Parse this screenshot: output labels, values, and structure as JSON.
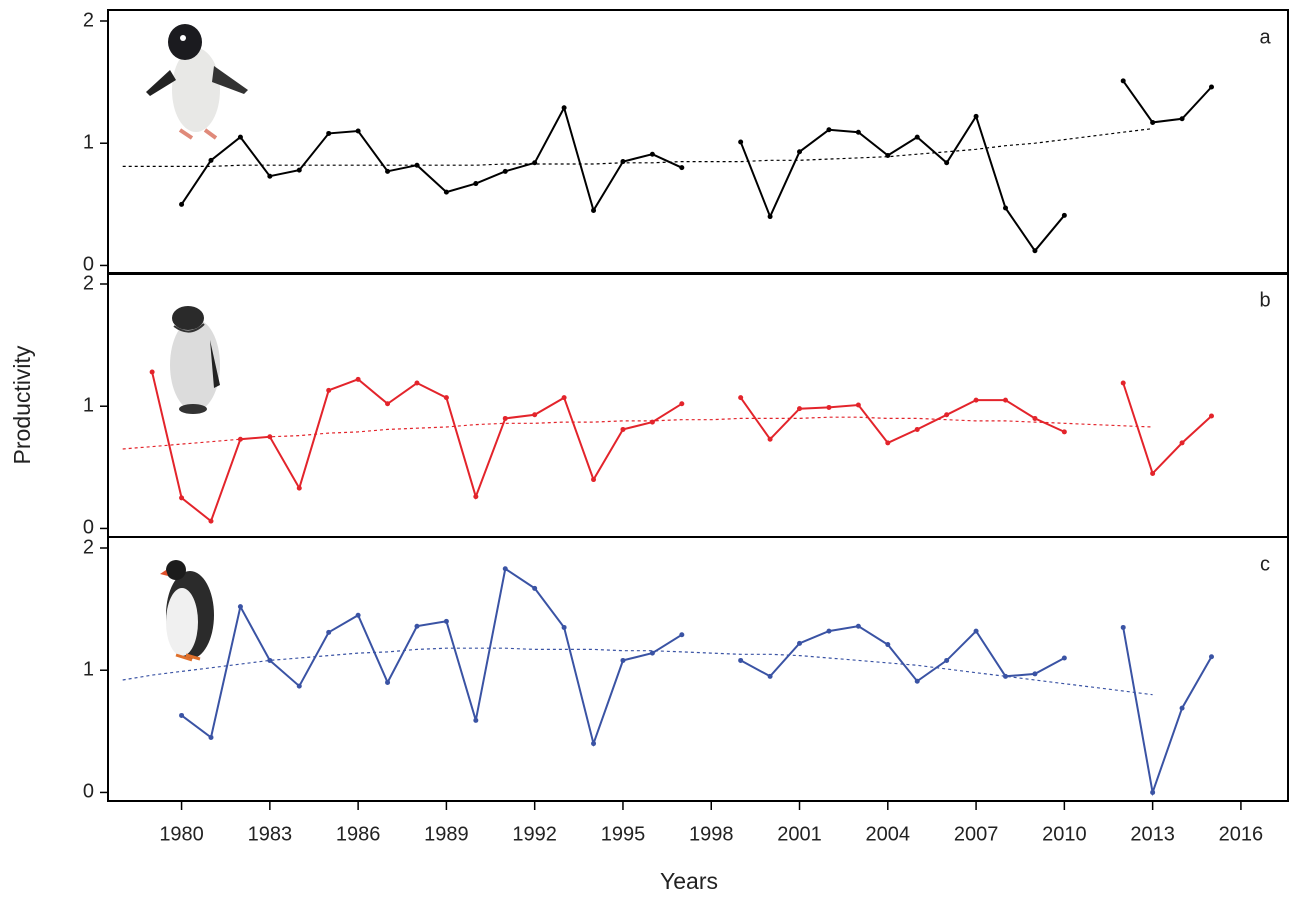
{
  "chart_data": {
    "type": "line",
    "ylabel": "Productivity",
    "xlabel": "Years",
    "x": [
      1978,
      1979,
      1980,
      1981,
      1982,
      1983,
      1984,
      1985,
      1986,
      1987,
      1988,
      1989,
      1990,
      1991,
      1992,
      1993,
      1994,
      1995,
      1996,
      1997,
      1998,
      1999,
      2000,
      2001,
      2002,
      2003,
      2004,
      2005,
      2006,
      2007,
      2008,
      2009,
      2010,
      2011,
      2012,
      2013,
      2014,
      2015
    ],
    "xlim": [
      1977.5,
      2017.6
    ],
    "xticks": [
      1980,
      1983,
      1986,
      1989,
      1992,
      1995,
      1998,
      2001,
      2004,
      2007,
      2010,
      2013,
      2016
    ],
    "panels": [
      {
        "label": "a",
        "ylim": [
          -0.07,
          2.09
        ],
        "yticks": [
          0,
          1,
          2
        ],
        "series": [
          {
            "color": "#000000",
            "linestyle": "solid",
            "markers": true,
            "values": [
              null,
              null,
              0.5,
              0.86,
              1.05,
              0.73,
              0.78,
              1.08,
              1.1,
              0.77,
              0.82,
              0.6,
              0.67,
              0.77,
              0.84,
              1.29,
              0.45,
              0.85,
              0.91,
              0.8,
              null,
              1.01,
              0.4,
              0.93,
              1.11,
              1.09,
              0.9,
              1.05,
              0.84,
              1.22,
              0.47,
              0.12,
              0.41,
              null,
              1.51,
              1.17,
              1.2,
              1.46
            ]
          },
          {
            "color": "#000000",
            "linestyle": "dashed",
            "markers": false,
            "values": [
              0.81,
              0.81,
              0.81,
              0.81,
              0.82,
              0.82,
              0.82,
              0.82,
              0.82,
              0.82,
              0.82,
              0.82,
              0.82,
              0.83,
              0.83,
              0.83,
              0.83,
              0.84,
              0.84,
              0.85,
              0.85,
              0.85,
              0.86,
              0.86,
              0.87,
              0.88,
              0.89,
              0.91,
              0.93,
              0.95,
              0.98,
              1.0,
              1.03,
              1.06,
              1.09,
              1.12,
              null,
              null
            ]
          }
        ]
      },
      {
        "label": "b",
        "ylim": [
          -0.07,
          2.09
        ],
        "yticks": [
          0,
          1,
          2
        ],
        "series": [
          {
            "color": "#e3242b",
            "linestyle": "solid",
            "markers": true,
            "values": [
              null,
              1.28,
              0.25,
              0.06,
              0.73,
              0.75,
              0.33,
              1.13,
              1.22,
              1.02,
              1.19,
              1.07,
              0.26,
              0.9,
              0.93,
              1.07,
              0.4,
              0.81,
              0.87,
              1.02,
              null,
              1.07,
              0.73,
              0.98,
              0.99,
              1.01,
              0.7,
              0.81,
              0.93,
              1.05,
              1.05,
              0.9,
              0.79,
              null,
              1.19,
              0.45,
              0.7,
              0.92
            ]
          },
          {
            "color": "#e3242b",
            "linestyle": "dashed",
            "markers": false,
            "values": [
              0.65,
              0.67,
              0.69,
              0.71,
              0.73,
              0.75,
              0.76,
              0.78,
              0.79,
              0.81,
              0.82,
              0.83,
              0.85,
              0.86,
              0.86,
              0.87,
              0.87,
              0.88,
              0.88,
              0.89,
              0.89,
              0.9,
              0.9,
              0.9,
              0.91,
              0.91,
              0.9,
              0.9,
              0.89,
              0.88,
              0.88,
              0.87,
              0.86,
              0.85,
              0.84,
              0.83,
              null,
              null
            ]
          }
        ]
      },
      {
        "label": "c",
        "ylim": [
          -0.07,
          2.09
        ],
        "yticks": [
          0,
          1,
          2
        ],
        "series": [
          {
            "color": "#3a53a4",
            "linestyle": "solid",
            "markers": true,
            "values": [
              null,
              null,
              0.63,
              0.45,
              1.52,
              1.08,
              0.87,
              1.31,
              1.45,
              0.9,
              1.36,
              1.4,
              0.59,
              1.83,
              1.67,
              1.35,
              0.4,
              1.08,
              1.14,
              1.29,
              null,
              1.08,
              0.95,
              1.22,
              1.32,
              1.36,
              1.21,
              0.91,
              1.08,
              1.32,
              0.95,
              0.97,
              1.1,
              null,
              1.35,
              0.0,
              0.69,
              1.11
            ]
          },
          {
            "color": "#3a53a4",
            "linestyle": "dashed",
            "markers": false,
            "values": [
              0.92,
              0.96,
              0.99,
              1.02,
              1.05,
              1.08,
              1.1,
              1.12,
              1.14,
              1.15,
              1.17,
              1.18,
              1.18,
              1.18,
              1.17,
              1.17,
              1.17,
              1.16,
              1.16,
              1.15,
              1.14,
              1.13,
              1.13,
              1.12,
              1.1,
              1.08,
              1.06,
              1.04,
              1.01,
              0.98,
              0.95,
              0.92,
              0.89,
              0.86,
              0.83,
              0.8,
              null,
              null
            ]
          }
        ]
      }
    ]
  }
}
